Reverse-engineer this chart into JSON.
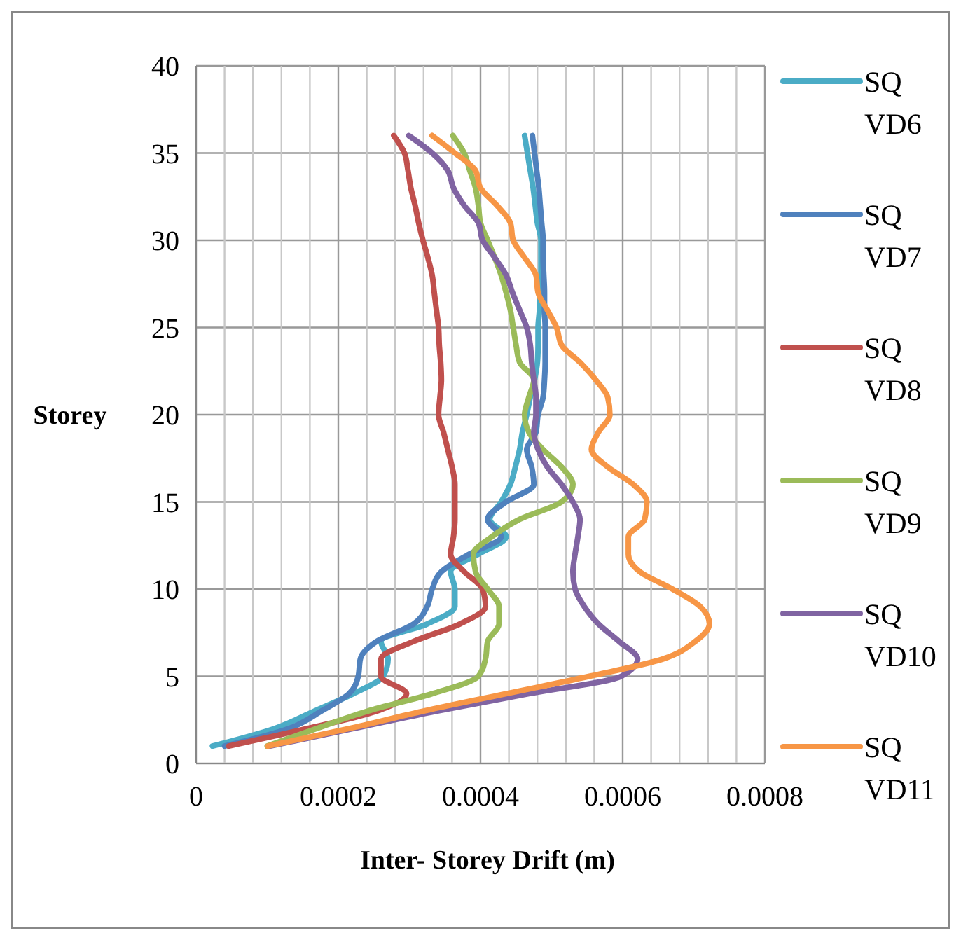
{
  "chart_data": {
    "type": "line",
    "xlabel": "Inter- Storey Drift (m)",
    "ylabel": "Storey",
    "xlim": [
      0,
      0.0008
    ],
    "ylim": [
      0,
      40
    ],
    "xticks": [
      0,
      {
        "value": 4e-05,
        "label": null
      },
      {
        "value": 8e-05,
        "label": null
      },
      {
        "value": 0.00012,
        "label": null
      },
      {
        "value": 0.00016,
        "label": null
      },
      0.0002,
      {
        "value": 0.00024,
        "label": null
      },
      {
        "value": 0.00028,
        "label": null
      },
      {
        "value": 0.00032,
        "label": null
      },
      {
        "value": 0.00036,
        "label": null
      },
      0.0004,
      {
        "value": 0.00044,
        "label": null
      },
      {
        "value": 0.00048,
        "label": null
      },
      {
        "value": 0.00052,
        "label": null
      },
      {
        "value": 0.00056,
        "label": null
      },
      0.0006,
      {
        "value": 0.00064,
        "label": null
      },
      {
        "value": 0.00068,
        "label": null
      },
      {
        "value": 0.00072,
        "label": null
      },
      {
        "value": 0.00076,
        "label": null
      },
      0.0008
    ],
    "yticks": [
      0,
      5,
      10,
      15,
      20,
      25,
      30,
      35,
      40
    ],
    "grid": true,
    "legend": "right",
    "series": [
      {
        "name": "SQ VD6",
        "color": "#4bacc6",
        "x": [
          2.3e-05,
          0.00011,
          0.000166,
          0.000221,
          0.000263,
          0.00027,
          0.00026,
          0.000325,
          0.000364,
          0.000364,
          0.000358,
          0.000397,
          0.000436,
          0.000413,
          0.000429,
          0.000442,
          0.000449,
          0.000455,
          0.000459,
          0.000465,
          0.00047,
          0.000476,
          0.00048,
          0.000481,
          0.000481,
          0.000483,
          0.000484,
          0.000485,
          0.000485,
          0.000485,
          0.00048,
          0.000477,
          0.000474,
          0.00047,
          0.000466,
          0.000462
        ],
        "values": [
          1,
          2,
          3,
          4,
          5,
          6,
          7,
          8,
          9,
          10,
          11,
          12,
          13,
          14,
          15,
          16,
          17,
          18,
          19,
          20,
          21,
          22,
          23,
          24,
          25,
          26,
          27,
          28,
          29,
          30,
          31,
          32,
          33,
          34,
          35,
          36
        ]
      },
      {
        "name": "SQ VD7",
        "color": "#4f81bd",
        "x": [
          4e-05,
          0.00013,
          0.000176,
          0.000215,
          0.000228,
          0.000231,
          0.000254,
          0.000306,
          0.000325,
          0.000332,
          0.000345,
          0.000384,
          0.000429,
          0.00041,
          0.000436,
          0.000475,
          0.000472,
          0.000465,
          0.000478,
          0.000481,
          0.000488,
          0.00049,
          0.000491,
          0.000491,
          0.000491,
          0.00049,
          0.00049,
          0.000489,
          0.000488,
          0.000488,
          0.000486,
          0.000484,
          0.000482,
          0.000479,
          0.000476,
          0.000473
        ],
        "values": [
          1,
          2,
          3,
          4,
          5,
          6,
          7,
          8,
          9,
          10,
          11,
          12,
          13,
          14,
          15,
          16,
          17,
          18,
          19,
          20,
          21,
          22,
          23,
          24,
          25,
          26,
          27,
          28,
          29,
          30,
          31,
          32,
          33,
          34,
          35,
          36
        ]
      },
      {
        "name": "SQ VD8",
        "color": "#c0504d",
        "x": [
          4.6e-05,
          0.000156,
          0.000254,
          0.000296,
          0.00026,
          0.00026,
          0.000306,
          0.000371,
          0.000407,
          0.000403,
          0.000377,
          0.000358,
          0.000362,
          0.000364,
          0.000364,
          0.000364,
          0.00036,
          0.000354,
          0.000348,
          0.000341,
          0.000343,
          0.000345,
          0.000344,
          0.000342,
          0.000341,
          0.000338,
          0.000335,
          0.000332,
          0.000326,
          0.000319,
          0.000313,
          0.000308,
          0.000302,
          0.000298,
          0.000293,
          0.000278
        ],
        "values": [
          1,
          2,
          3,
          4,
          5,
          6,
          7,
          8,
          9,
          10,
          11,
          12,
          13,
          14,
          15,
          16,
          17,
          18,
          19,
          20,
          21,
          22,
          23,
          24,
          25,
          26,
          27,
          28,
          29,
          30,
          31,
          32,
          33,
          34,
          35,
          36
        ]
      },
      {
        "name": "SQ VD9",
        "color": "#9bbb59",
        "x": [
          0.0001,
          0.000169,
          0.000241,
          0.000332,
          0.000397,
          0.000407,
          0.00041,
          0.000426,
          0.000426,
          0.00041,
          0.000393,
          0.00039,
          0.000416,
          0.000455,
          0.000514,
          0.00053,
          0.000514,
          0.000488,
          0.000468,
          0.000462,
          0.000468,
          0.000475,
          0.000455,
          0.00045,
          0.000446,
          0.000442,
          0.000436,
          0.000429,
          0.00042,
          0.00041,
          0.0004,
          0.000397,
          0.000393,
          0.000385,
          0.000377,
          0.000361
        ],
        "values": [
          1,
          2,
          3,
          4,
          5,
          6,
          7,
          8,
          9,
          10,
          11,
          12,
          13,
          14,
          15,
          16,
          17,
          18,
          19,
          20,
          21,
          22,
          23,
          24,
          25,
          26,
          27,
          28,
          29,
          30,
          31,
          32,
          33,
          34,
          35,
          36
        ]
      },
      {
        "name": "SQ VD10",
        "color": "#8064a2",
        "x": [
          0.000104,
          0.000221,
          0.000338,
          0.000468,
          0.000598,
          0.000621,
          0.000595,
          0.000566,
          0.000546,
          0.000533,
          0.00053,
          0.000533,
          0.000537,
          0.00054,
          0.00053,
          0.000514,
          0.000494,
          0.000481,
          0.000475,
          0.000478,
          0.000478,
          0.000475,
          0.000472,
          0.00047,
          0.000465,
          0.000455,
          0.000445,
          0.000436,
          0.00042,
          0.000403,
          0.000397,
          0.000377,
          0.000362,
          0.000354,
          0.000332,
          0.000299
        ],
        "values": [
          1,
          2,
          3,
          4,
          5,
          6,
          7,
          8,
          9,
          10,
          11,
          12,
          13,
          14,
          15,
          16,
          17,
          18,
          19,
          20,
          21,
          22,
          23,
          24,
          25,
          26,
          27,
          28,
          29,
          30,
          31,
          32,
          33,
          34,
          35,
          36
        ]
      },
      {
        "name": "SQ VD11",
        "color": "#f79646",
        "x": [
          0.000101,
          0.000215,
          0.000319,
          0.000436,
          0.000553,
          0.000657,
          0.000702,
          0.000722,
          0.000709,
          0.00067,
          0.000624,
          0.000608,
          0.000608,
          0.000631,
          0.000634,
          0.000615,
          0.000579,
          0.000556,
          0.000566,
          0.000582,
          0.000579,
          0.000562,
          0.00054,
          0.000514,
          0.000507,
          0.000494,
          0.000481,
          0.000478,
          0.000462,
          0.000446,
          0.000442,
          0.000423,
          0.0004,
          0.000393,
          0.000364,
          0.000332
        ],
        "values": [
          1,
          2,
          3,
          4,
          5,
          6,
          7,
          8,
          9,
          10,
          11,
          12,
          13,
          14,
          15,
          16,
          17,
          18,
          19,
          20,
          21,
          22,
          23,
          24,
          25,
          26,
          27,
          28,
          29,
          30,
          31,
          32,
          33,
          34,
          35,
          36
        ]
      }
    ]
  }
}
